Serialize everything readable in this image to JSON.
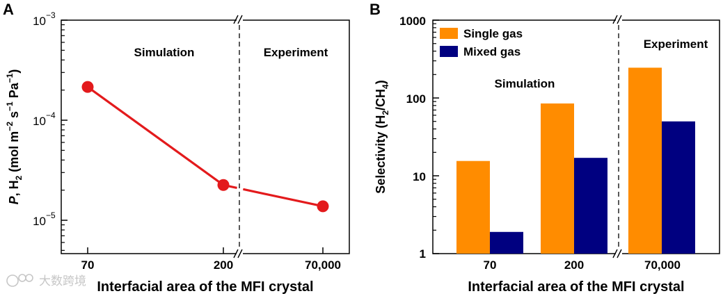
{
  "chart_data": [
    {
      "panel": "A",
      "type": "line",
      "scale_y": "log",
      "ylim": [
        1e-05,
        0.001
      ],
      "y_ticks": [
        {
          "value": 0.001,
          "base": "10",
          "exp": "−3"
        },
        {
          "value": 0.0001,
          "base": "10",
          "exp": "−4"
        },
        {
          "value": 1e-05,
          "base": "10",
          "exp": "−5"
        }
      ],
      "categories": [
        "70",
        "200",
        "70,000"
      ],
      "values": [
        0.000215,
        2.25e-05,
        1.38e-05
      ],
      "xlabel": "Interfacial area of the MFI crystal",
      "ylabel_parts": [
        "P",
        ", H",
        "2",
        " (mol m",
        "−2",
        " s",
        "−1",
        " Pa",
        "−1",
        ")"
      ],
      "regions": [
        "Simulation",
        "Experiment"
      ],
      "axis_break": true,
      "color": "#e31a1c"
    },
    {
      "panel": "B",
      "type": "bar",
      "scale_y": "log",
      "ylim": [
        1,
        1000
      ],
      "y_ticks": [
        "1",
        "10",
        "100",
        "1000"
      ],
      "categories": [
        "70",
        "200",
        "70,000"
      ],
      "series": [
        {
          "name": "Single gas",
          "values": [
            15.5,
            85,
            245
          ],
          "color": "#ff8c00"
        },
        {
          "name": "Mixed gas",
          "values": [
            1.9,
            17,
            50
          ],
          "color": "#000080"
        }
      ],
      "xlabel": "Interfacial area of the MFI crystal",
      "ylabel_parts": [
        "Selectivity (H",
        "2",
        "/CH",
        "4",
        ")"
      ],
      "regions": [
        "Simulation",
        "Experiment"
      ],
      "axis_break": true,
      "legend_position": "top-left"
    }
  ],
  "watermark": "大数跨境"
}
